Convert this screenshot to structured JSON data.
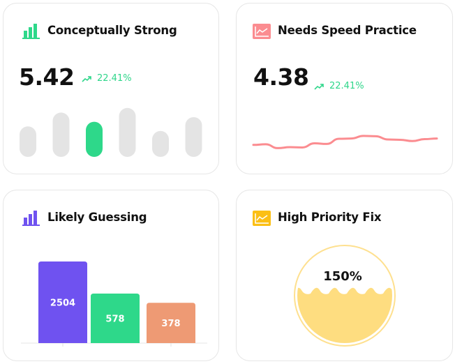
{
  "colors": {
    "green": "#2ed88a",
    "purple": "#6f52f0",
    "orange": "#ee9a74",
    "pink": "#fb8c90",
    "yellow": "#fbbf15",
    "gauge_fill": "#fedd80",
    "gray": "#e4e4e4"
  },
  "cards": [
    {
      "title": "Conceptually Strong",
      "icon": "bar-chart-icon",
      "value": "5.42",
      "trend": "22.41%",
      "trend_icon": "trending-up-icon",
      "mini_bars": [
        3,
        6,
        4,
        7,
        2,
        5
      ],
      "highlight_index": 2
    },
    {
      "title": "Needs Speed Practice",
      "icon": "line-chart-icon",
      "value": "4.38",
      "trend": "22.41%",
      "trend_icon": "trending-up-icon",
      "sparkline": [
        2,
        2.2,
        1,
        1.3,
        1.2,
        2.5,
        2.3,
        3.9,
        4,
        4.8,
        4.7,
        3.7,
        3.6,
        3.2,
        3.8,
        4
      ]
    },
    {
      "title": "Likely Guessing",
      "icon": "bar-chart-icon",
      "chart_data": {
        "type": "bar",
        "values": [
          2504,
          578,
          378
        ],
        "labels": [
          "2504",
          "578",
          "378"
        ],
        "colors": [
          "#6f52f0",
          "#2ed88a",
          "#ee9a74"
        ]
      }
    },
    {
      "title": "High Priority Fix",
      "icon": "line-chart-icon",
      "gauge": {
        "value": 150,
        "label": "150%"
      }
    }
  ]
}
